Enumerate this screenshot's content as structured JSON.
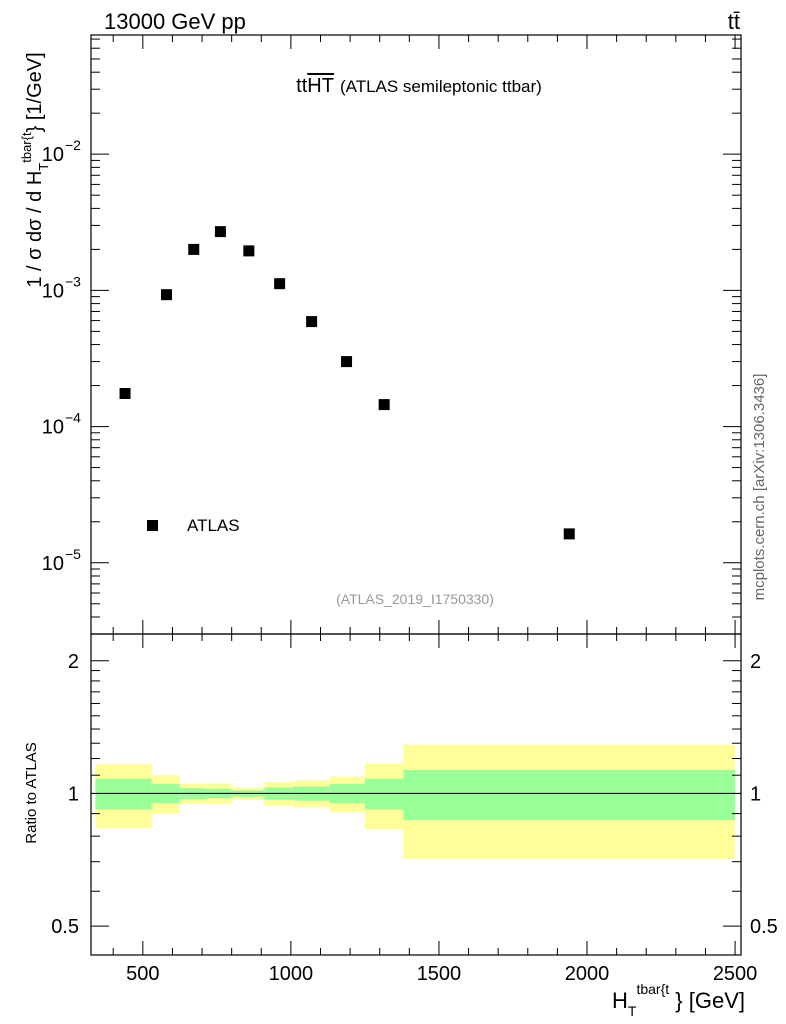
{
  "header": {
    "left": "13000 GeV pp",
    "right": "tt̄"
  },
  "side_label": "mcplots.cern.ch [arXiv:1306.3436]",
  "chart_data": [
    {
      "type": "scatter",
      "title": "ttHT (ATLAS semileptonic ttbar)",
      "title_main": "tt",
      "title_overline": "HT",
      "title_rest": "(ATLAS semileptonic ttbar)",
      "analysis_id": "(ATLAS_2019_I1750330)",
      "ylabel": "1 / σ dσ / d H_T^{tbar{t}} [1/GeV]",
      "y_scale": "log",
      "ylim": [
        3e-06,
        0.075
      ],
      "xlim": [
        325,
        2520
      ],
      "y_ticks": [
        {
          "value": 1e-05,
          "base": "10",
          "exp": "−5"
        },
        {
          "value": 0.0001,
          "base": "10",
          "exp": "−4"
        },
        {
          "value": 0.001,
          "base": "10",
          "exp": "−3"
        },
        {
          "value": 0.01,
          "base": "10",
          "exp": "−2"
        }
      ],
      "legend": {
        "position": "bottom-left",
        "entries": [
          "ATLAS"
        ]
      },
      "series": [
        {
          "name": "ATLAS",
          "marker": "square",
          "color": "#000000",
          "x": [
            440,
            580,
            672,
            762,
            858,
            962,
            1070,
            1188,
            1315,
            1940
          ],
          "y": [
            0.000175,
            0.00093,
            0.002,
            0.0027,
            0.00195,
            0.00112,
            0.00059,
            0.0003,
            0.000145,
            1.63e-05
          ]
        }
      ]
    },
    {
      "type": "area",
      "ylabel": "Ratio to ATLAS",
      "xlabel": "H_T^{tbar{t}} [GeV]",
      "y_scale": "log",
      "ylim": [
        0.43,
        2.3
      ],
      "xlim": [
        325,
        2520
      ],
      "x_ticks": [
        500,
        1000,
        1500,
        2000,
        2500
      ],
      "y_ticks": [
        0.5,
        1,
        2
      ],
      "y_tick_labels": [
        "0.5",
        "1",
        "2"
      ],
      "reference_line": 1,
      "colors": {
        "inner_band": "#99ff99",
        "outer_band": "#ffff99",
        "line": "#000000"
      },
      "bins": [
        {
          "lo": 340,
          "hi": 530,
          "inner": [
            0.92,
            1.08
          ],
          "outer": [
            0.835,
            1.165
          ]
        },
        {
          "lo": 530,
          "hi": 625,
          "inner": [
            0.95,
            1.05
          ],
          "outer": [
            0.9,
            1.1
          ]
        },
        {
          "lo": 625,
          "hi": 710,
          "inner": [
            0.972,
            1.028
          ],
          "outer": [
            0.948,
            1.052
          ]
        },
        {
          "lo": 710,
          "hi": 800,
          "inner": [
            0.975,
            1.025
          ],
          "outer": [
            0.947,
            1.053
          ]
        },
        {
          "lo": 800,
          "hi": 910,
          "inner": [
            0.983,
            1.017
          ],
          "outer": [
            0.968,
            1.032
          ]
        },
        {
          "lo": 910,
          "hi": 1010,
          "inner": [
            0.968,
            1.032
          ],
          "outer": [
            0.938,
            1.062
          ]
        },
        {
          "lo": 1010,
          "hi": 1130,
          "inner": [
            0.963,
            1.037
          ],
          "outer": [
            0.93,
            1.07
          ]
        },
        {
          "lo": 1130,
          "hi": 1250,
          "inner": [
            0.95,
            1.05
          ],
          "outer": [
            0.908,
            1.092
          ]
        },
        {
          "lo": 1250,
          "hi": 1380,
          "inner": [
            0.92,
            1.08
          ],
          "outer": [
            0.83,
            1.17
          ]
        },
        {
          "lo": 1380,
          "hi": 2500,
          "inner": [
            0.87,
            1.13
          ],
          "outer": [
            0.71,
            1.29
          ]
        }
      ]
    }
  ]
}
